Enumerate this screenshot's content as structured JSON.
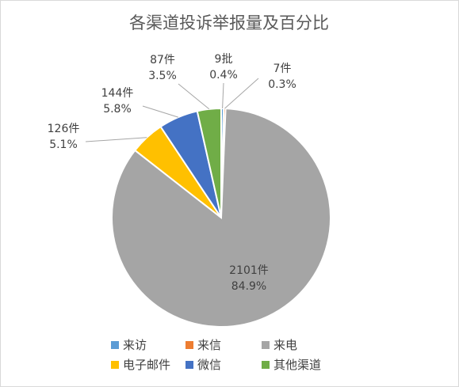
{
  "chart_data": {
    "type": "pie",
    "title": "各渠道投诉举报量及百分比",
    "series": [
      {
        "name": "",
        "categories": [
          "来访",
          "来信",
          "来电",
          "电子邮件",
          "微信",
          "其他渠道"
        ],
        "values": [
          9,
          7,
          2101,
          126,
          144,
          87
        ],
        "data_labels": [
          [
            "9批",
            "0.4%"
          ],
          [
            "7件",
            "0.3%"
          ],
          [
            "2101件",
            "84.9%"
          ],
          [
            "126件",
            "5.1%"
          ],
          [
            "144件",
            "5.8%"
          ],
          [
            "87件",
            "3.5%"
          ]
        ]
      }
    ],
    "colors": [
      "#5B9BD5",
      "#ED7D31",
      "#A5A5A5",
      "#FFC000",
      "#4472C4",
      "#70AD47"
    ],
    "legend": {
      "position": "bottom",
      "items": [
        "来访",
        "来信",
        "来电",
        "电子邮件",
        "微信",
        "其他渠道"
      ]
    }
  }
}
